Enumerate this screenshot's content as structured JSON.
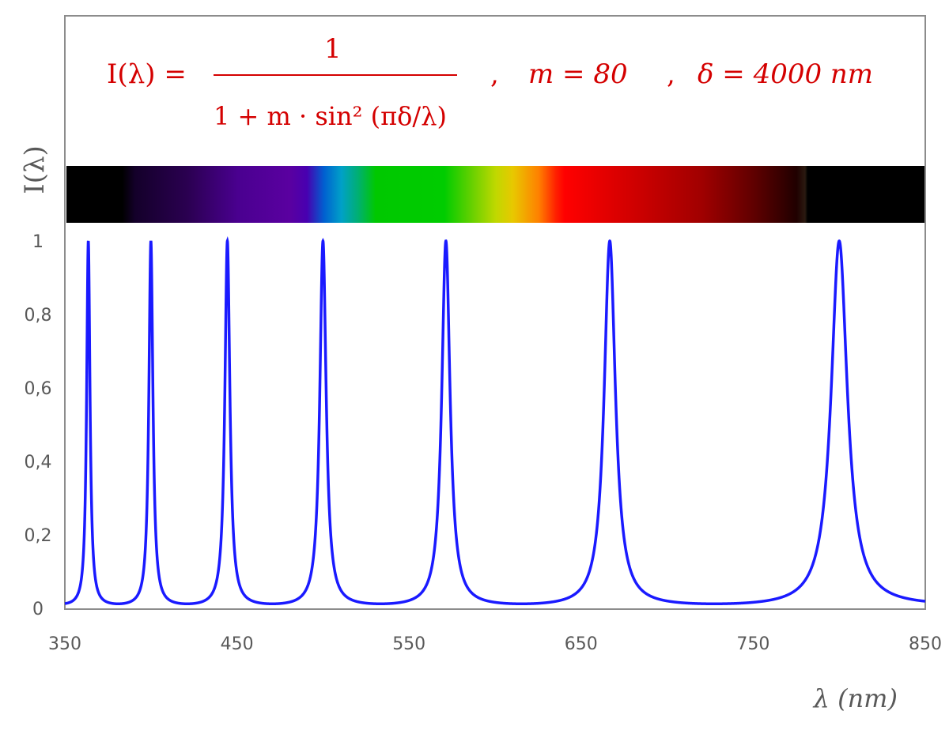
{
  "chart_data": {
    "type": "line",
    "formula": {
      "lhs": "I(λ) =",
      "numerator": "1",
      "denominator": "1 + m · sin² (πδ/λ)",
      "params": [
        {
          "label": "m = 80"
        },
        {
          "label": "δ = 4000 nm"
        }
      ]
    },
    "m": 80,
    "delta_nm": 4000,
    "series": [
      {
        "function": "I = 1/(1 + m·sin²(π·δ/λ))",
        "color": "#1a1aff"
      }
    ],
    "peaks_nm": [
      363.6,
      400,
      444.4,
      500,
      571.4,
      666.7,
      800
    ],
    "xlabel": "λ (nm)",
    "ylabel": "I(λ)",
    "xlim": [
      350,
      850
    ],
    "ylim": [
      0,
      1
    ],
    "xticks": [
      "350",
      "450",
      "550",
      "650",
      "750",
      "850"
    ],
    "yticks": [
      "0",
      "0,2",
      "0,4",
      "0,6",
      "0,8",
      "1"
    ],
    "grid": false,
    "spectrum_bar": true,
    "formula_color": "#d40000"
  }
}
